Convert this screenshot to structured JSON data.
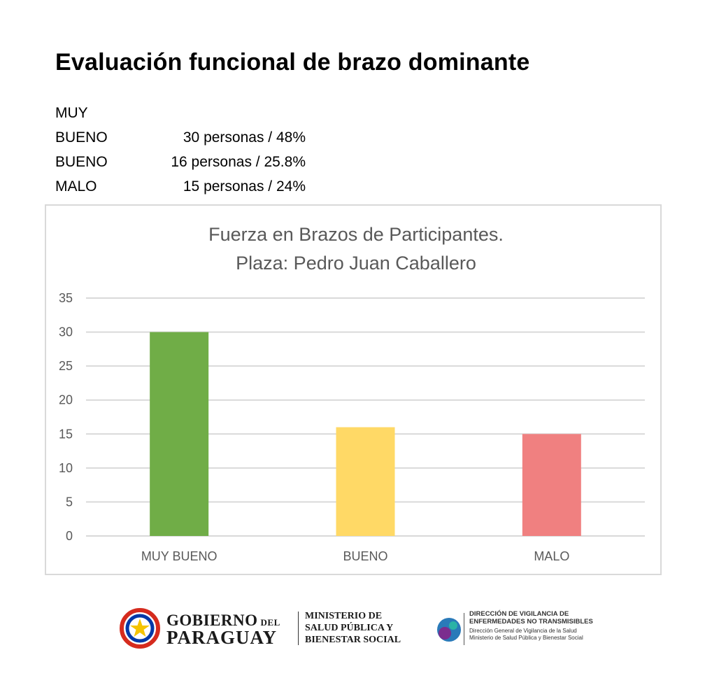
{
  "page": {
    "title": "Evaluación funcional de brazo dominante"
  },
  "summary": [
    {
      "category_line1": "MUY",
      "category_line2": "BUENO",
      "value": "30 personas / 48%"
    },
    {
      "category": "BUENO",
      "value": "16 personas / 25.8%"
    },
    {
      "category": "MALO",
      "value": "15 personas / 24%"
    }
  ],
  "chart_data": {
    "type": "bar",
    "title_lines": [
      "Fuerza en Brazos de Participantes.",
      "Plaza: Pedro Juan Caballero"
    ],
    "categories": [
      "MUY BUENO",
      "BUENO",
      "MALO"
    ],
    "values": [
      30,
      16,
      15
    ],
    "colors": [
      "#70ad47",
      "#ffd966",
      "#f08080"
    ],
    "ylim": [
      0,
      35
    ],
    "yticks": [
      0,
      5,
      10,
      15,
      20,
      25,
      30,
      35
    ],
    "grid": true,
    "xlabel": "",
    "ylabel": ""
  },
  "footer": {
    "gov_line1": "GOBIERNO",
    "gov_del": "DEL",
    "gov_line2": "PARAGUAY",
    "ministry_lines": [
      "MINISTERIO DE",
      "SALUD PÚBLICA Y",
      "BIENESTAR SOCIAL"
    ],
    "dir_title_lines": [
      "DIRECCIÓN DE VIGILANCIA DE",
      "ENFERMEDADES NO TRANSMISIBLES"
    ],
    "dir_sub_lines": [
      "Dirección General de Vigilancia de la Salud",
      "Ministerio de Salud Pública y Bienestar Social"
    ],
    "colors": {
      "flag_red": "#d52b1e",
      "flag_blue": "#0038a8",
      "star": "#f5c400",
      "logo_blue": "#2a7ab9",
      "logo_purple": "#7b2d8e",
      "logo_teal": "#2bb3a6"
    }
  }
}
